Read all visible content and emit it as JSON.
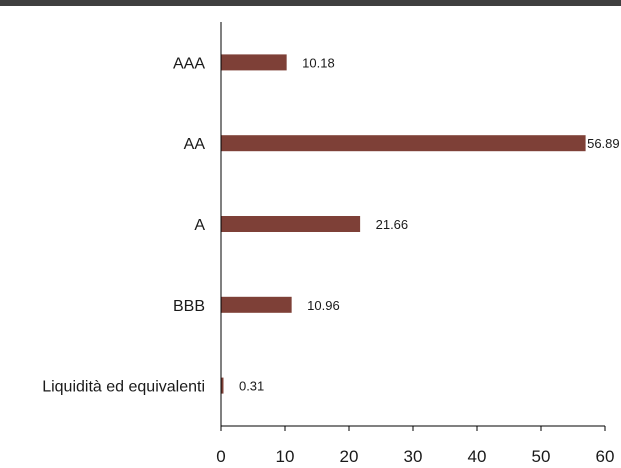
{
  "chart_data": {
    "type": "bar",
    "orientation": "horizontal",
    "categories": [
      "AAA",
      "AA",
      "A",
      "BBB",
      "Liquidità ed equivalenti"
    ],
    "values": [
      10.18,
      56.89,
      21.66,
      10.96,
      0.31
    ],
    "value_labels": [
      "10.18",
      "56.89",
      "21.66",
      "10.96",
      "0.31"
    ],
    "xlim": [
      0,
      60
    ],
    "xticks": [
      0,
      10,
      20,
      30,
      40,
      50,
      60
    ],
    "title": "",
    "xlabel": "",
    "ylabel": "",
    "grid": false,
    "legend": "none"
  },
  "colors": {
    "bar": "#7e4037",
    "header_rule": "#3f3f3f",
    "axis": "#000000",
    "text": "#1a1a1a"
  }
}
